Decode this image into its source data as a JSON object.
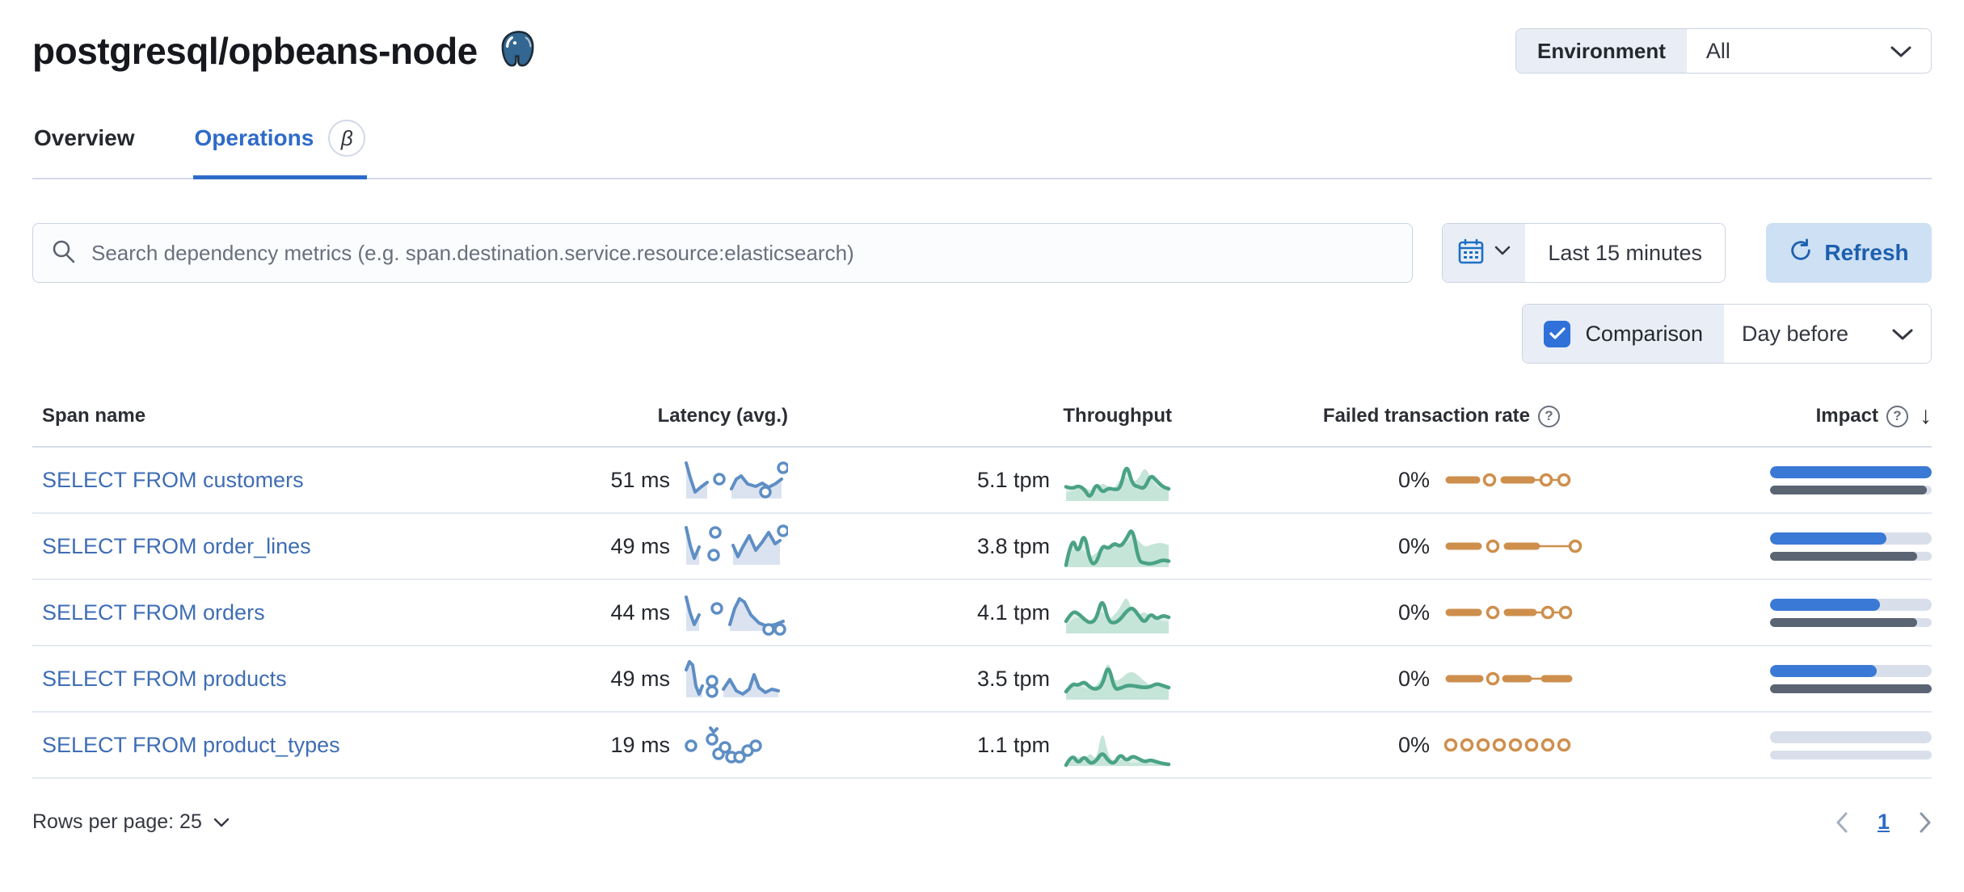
{
  "header": {
    "title": "postgresql/opbeans-node",
    "environment": {
      "label": "Environment",
      "value": "All"
    }
  },
  "tabs": [
    {
      "label": "Overview",
      "active": false
    },
    {
      "label": "Operations",
      "active": true,
      "badge": "β"
    }
  ],
  "toolbar": {
    "search_placeholder": "Search dependency metrics (e.g. span.destination.service.resource:elasticsearch)",
    "time_range": "Last 15 minutes",
    "refresh_label": "Refresh",
    "comparison_label": "Comparison",
    "comparison_checked": true,
    "comparison_value": "Day before"
  },
  "table": {
    "columns": [
      "Span name",
      "Latency (avg.)",
      "Throughput",
      "Failed transaction rate",
      "Impact"
    ],
    "rows": [
      {
        "span_name": "SELECT FROM customers",
        "latency": "51 ms",
        "throughput": "5.1 tpm",
        "failed_rate": "0%",
        "impact_current": 100,
        "impact_previous": 97,
        "latency_spark": {
          "segs": [
            {
              "p": [
                [
                  4,
                  8
                ],
                [
                  9,
                  26
                ],
                [
                  15,
                  44
                ],
                [
                  22,
                  38
                ],
                [
                  30,
                  32
                ]
              ],
              "a": 1
            },
            {
              "p": [
                [
                  60,
                  40
                ],
                [
                  66,
                  28
                ],
                [
                  72,
                  24
                ],
                [
                  80,
                  34
                ],
                [
                  90,
                  37
                ],
                [
                  98,
                  33
                ],
                [
                  106,
                  38
                ],
                [
                  114,
                  34
                ],
                [
                  122,
                  28
                ]
              ],
              "a": 1
            }
          ],
          "dots": [
            [
              45,
              28
            ],
            [
              102,
              44
            ],
            [
              124,
              14
            ]
          ]
        },
        "throughput_spark": {
          "current": [
            0.35,
            0.3,
            0.38,
            0.3,
            0.05,
            0.45,
            0.2,
            0.32,
            0.28,
            0.3,
            0.95,
            0.4,
            0.35,
            0.3,
            0.65,
            0.5,
            0.35,
            0.3
          ],
          "previous": [
            0.2,
            0.25,
            0.3,
            0.35,
            0.25,
            0.3,
            0.45,
            0.35,
            0.3,
            0.55,
            0.6,
            0.45,
            0.55,
            0.85,
            0.6,
            0.35,
            0.3,
            0.25
          ]
        },
        "failed_spark": {
          "th": [
            [
              8,
              42
            ],
            [
              76,
              110
            ]
          ],
          "tn": [
            [
              110,
              158
            ]
          ],
          "d": [
            58,
            128,
            150
          ]
        }
      },
      {
        "span_name": "SELECT FROM order_lines",
        "latency": "49 ms",
        "throughput": "3.8 tpm",
        "failed_rate": "0%",
        "impact_current": 72,
        "impact_previous": 91,
        "latency_spark": {
          "segs": [
            {
              "p": [
                [
                  4,
                  6
                ],
                [
                  9,
                  28
                ],
                [
                  14,
                  44
                ],
                [
                  20,
                  30
                ]
              ],
              "a": 1
            },
            {
              "p": [
                [
                  62,
                  28
                ],
                [
                  68,
                  42
                ],
                [
                  74,
                  30
                ],
                [
                  82,
                  16
                ],
                [
                  90,
                  34
                ],
                [
                  98,
                  24
                ],
                [
                  106,
                  12
                ],
                [
                  114,
                  26
                ],
                [
                  120,
                  22
                ]
              ],
              "a": 1
            }
          ],
          "dots": [
            [
              40,
              12
            ],
            [
              38,
              40
            ],
            [
              124,
              10
            ]
          ]
        },
        "throughput_spark": {
          "current": [
            0.05,
            0.8,
            0.3,
            0.9,
            0.1,
            0.08,
            0.55,
            0.45,
            0.6,
            0.5,
            0.7,
            1.0,
            0.15,
            0.1,
            0.08,
            0.12,
            0.18,
            0.15
          ],
          "previous": [
            0.3,
            0.45,
            0.5,
            0.4,
            0.25,
            0.35,
            0.45,
            0.55,
            0.5,
            0.6,
            0.55,
            0.8,
            0.65,
            0.5,
            0.55,
            0.6,
            0.6,
            0.55
          ]
        },
        "failed_spark": {
          "th": [
            [
              8,
              44
            ],
            [
              80,
              116
            ]
          ],
          "tn": [
            [
              116,
              158
            ]
          ],
          "d": [
            62,
            164
          ]
        }
      },
      {
        "span_name": "SELECT FROM orders",
        "latency": "44 ms",
        "throughput": "4.1 tpm",
        "failed_rate": "0%",
        "impact_current": 68,
        "impact_previous": 91,
        "latency_spark": {
          "segs": [
            {
              "p": [
                [
                  4,
                  10
                ],
                [
                  9,
                  30
                ],
                [
                  14,
                  44
                ],
                [
                  20,
                  32
                ]
              ],
              "a": 1
            },
            {
              "p": [
                [
                  58,
                  44
                ],
                [
                  64,
                  24
                ],
                [
                  70,
                  12
                ],
                [
                  76,
                  16
                ],
                [
                  84,
                  32
                ],
                [
                  94,
                  42
                ],
                [
                  104,
                  46
                ],
                [
                  114,
                  44
                ],
                [
                  124,
                  40
                ]
              ],
              "a": 1
            }
          ],
          "dots": [
            [
              42,
              24
            ],
            [
              106,
              50
            ],
            [
              120,
              50
            ]
          ]
        },
        "throughput_spark": {
          "current": [
            0.3,
            0.55,
            0.5,
            0.35,
            0.25,
            0.35,
            0.9,
            0.3,
            0.25,
            0.35,
            0.55,
            0.65,
            0.45,
            0.25,
            0.5,
            0.35,
            0.45,
            0.4
          ],
          "previous": [
            0.2,
            0.35,
            0.4,
            0.35,
            0.3,
            0.45,
            0.55,
            0.35,
            0.45,
            0.65,
            0.95,
            0.55,
            0.45,
            0.55,
            0.4,
            0.35,
            0.3,
            0.3
          ]
        },
        "failed_spark": {
          "th": [
            [
              8,
              44
            ],
            [
              80,
              112
            ]
          ],
          "tn": [
            [
              112,
              156
            ]
          ],
          "d": [
            62,
            130,
            152
          ]
        }
      },
      {
        "span_name": "SELECT FROM products",
        "latency": "49 ms",
        "throughput": "3.5 tpm",
        "failed_rate": "0%",
        "impact_current": 66,
        "impact_previous": 100,
        "latency_spark": {
          "segs": [
            {
              "p": [
                [
                  4,
                  18
                ],
                [
                  8,
                  8
                ],
                [
                  12,
                  12
                ],
                [
                  16,
                  38
                ],
                [
                  20,
                  48
                ],
                [
                  24,
                  38
                ]
              ],
              "a": 1
            },
            {
              "p": [
                [
                  50,
                  42
                ],
                [
                  58,
                  30
                ],
                [
                  66,
                  44
                ],
                [
                  74,
                  48
                ],
                [
                  82,
                  42
                ],
                [
                  88,
                  24
                ],
                [
                  94,
                  40
                ],
                [
                  102,
                  46
                ],
                [
                  110,
                  42
                ],
                [
                  118,
                  44
                ]
              ],
              "a": 1
            }
          ],
          "dots": [
            [
              36,
              32
            ],
            [
              36,
              45
            ]
          ]
        },
        "throughput_spark": {
          "current": [
            0.2,
            0.4,
            0.35,
            0.45,
            0.3,
            0.25,
            0.35,
            0.9,
            0.25,
            0.28,
            0.35,
            0.35,
            0.32,
            0.3,
            0.32,
            0.4,
            0.35,
            0.3
          ],
          "previous": [
            0.25,
            0.5,
            0.35,
            0.3,
            0.25,
            0.35,
            0.55,
            1.0,
            0.45,
            0.5,
            0.65,
            0.7,
            0.6,
            0.45,
            0.35,
            0.45,
            0.35,
            0.3
          ]
        },
        "failed_spark": {
          "th": [
            [
              8,
              46
            ],
            [
              78,
              106
            ],
            [
              126,
              156
            ]
          ],
          "tn": [
            [
              106,
              126
            ]
          ],
          "d": [
            62
          ]
        }
      },
      {
        "span_name": "SELECT FROM product_types",
        "latency": "19 ms",
        "throughput": "1.1 tpm",
        "failed_rate": "0%",
        "impact_current": 0,
        "impact_previous": 0,
        "latency_spark": {
          "segs": [
            {
              "p": [
                [
                  34,
                  8
                ],
                [
                  38,
                  13
                ],
                [
                  42,
                  9
                ]
              ],
              "a": 0
            }
          ],
          "dots": [
            [
              10,
              30
            ],
            [
              36,
              22
            ],
            [
              44,
              40
            ],
            [
              52,
              32
            ],
            [
              60,
              44
            ],
            [
              70,
              44
            ],
            [
              80,
              36
            ],
            [
              90,
              30
            ]
          ]
        },
        "throughput_spark": {
          "current": [
            0.02,
            0.3,
            0.05,
            0.25,
            0.05,
            0.12,
            0.35,
            0.12,
            0.05,
            0.3,
            0.12,
            0.25,
            0.18,
            0.1,
            0.15,
            0.1,
            0.06,
            0.04
          ],
          "previous": [
            0.05,
            0.12,
            0.25,
            0.12,
            0.35,
            0.12,
            0.95,
            0.25,
            0.1,
            0.18,
            0.12,
            0.06,
            0.1,
            0.08,
            0.05,
            0.1,
            0.06,
            0.05
          ]
        },
        "failed_spark": {
          "th": [],
          "tn": [],
          "d": [
            10,
            30,
            50,
            70,
            90,
            110,
            130,
            150
          ]
        }
      }
    ]
  },
  "footer": {
    "rows_per_page_label": "Rows per page: 25",
    "page": "1"
  },
  "colors": {
    "accent_blue": "#2e6bc9",
    "link_blue": "#3f6db4",
    "latency_line": "#5e8ec4",
    "latency_fill": "#dbe3f1",
    "throughput_line": "#4aa285",
    "throughput_fill": "#c6e5d9",
    "failed_color": "#ce8f4d",
    "impact_blue": "#3b79d6",
    "impact_gray": "#5b6473",
    "bar_track": "#d9dfea"
  }
}
